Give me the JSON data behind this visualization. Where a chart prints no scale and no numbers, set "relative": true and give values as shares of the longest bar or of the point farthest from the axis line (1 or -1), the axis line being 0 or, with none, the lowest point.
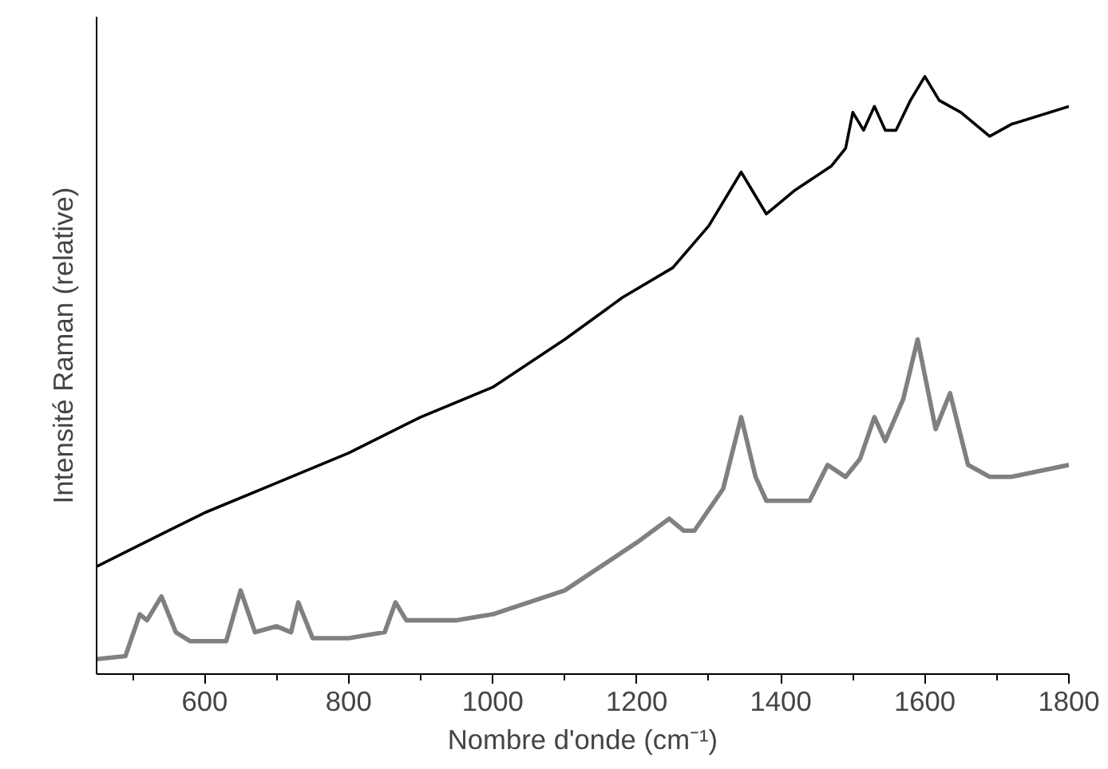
{
  "chart_data": {
    "type": "line",
    "relative": true,
    "xlabel": "Nombre d'onde (cm⁻¹)",
    "ylabel": "Intensité Raman (relative)",
    "xlim": [
      450,
      1800
    ],
    "xticks": [
      600,
      800,
      1000,
      1200,
      1400,
      1600,
      1800
    ],
    "tick_labels": "x",
    "grid": false,
    "marker": "none",
    "line_style": "solid",
    "series": [
      {
        "color": "#000000",
        "x": [
          450,
          500,
          550,
          600,
          700,
          800,
          900,
          1000,
          1100,
          1180,
          1250,
          1300,
          1330,
          1345,
          1370,
          1380,
          1420,
          1470,
          1490,
          1500,
          1515,
          1530,
          1545,
          1560,
          1580,
          1600,
          1620,
          1650,
          1690,
          1720,
          1800
        ],
        "values": [
          0.18,
          0.21,
          0.24,
          0.27,
          0.32,
          0.37,
          0.43,
          0.48,
          0.56,
          0.63,
          0.68,
          0.75,
          0.81,
          0.84,
          0.79,
          0.77,
          0.81,
          0.85,
          0.88,
          0.94,
          0.91,
          0.95,
          0.91,
          0.91,
          0.96,
          1.0,
          0.96,
          0.94,
          0.9,
          0.92,
          0.95
        ]
      },
      {
        "color": "#808080",
        "x": [
          450,
          490,
          510,
          520,
          540,
          560,
          580,
          630,
          650,
          670,
          700,
          720,
          730,
          750,
          800,
          850,
          865,
          880,
          950,
          1000,
          1100,
          1150,
          1200,
          1245,
          1265,
          1280,
          1320,
          1345,
          1365,
          1380,
          1440,
          1465,
          1490,
          1510,
          1530,
          1545,
          1570,
          1590,
          1615,
          1635,
          1660,
          1690,
          1720,
          1800
        ],
        "values": [
          0.025,
          0.03,
          0.1,
          0.09,
          0.13,
          0.07,
          0.055,
          0.055,
          0.14,
          0.07,
          0.08,
          0.07,
          0.12,
          0.06,
          0.06,
          0.07,
          0.12,
          0.09,
          0.09,
          0.1,
          0.14,
          0.18,
          0.22,
          0.26,
          0.24,
          0.24,
          0.31,
          0.43,
          0.33,
          0.29,
          0.29,
          0.35,
          0.33,
          0.36,
          0.43,
          0.39,
          0.46,
          0.56,
          0.41,
          0.47,
          0.35,
          0.33,
          0.33,
          0.35
        ]
      }
    ]
  }
}
